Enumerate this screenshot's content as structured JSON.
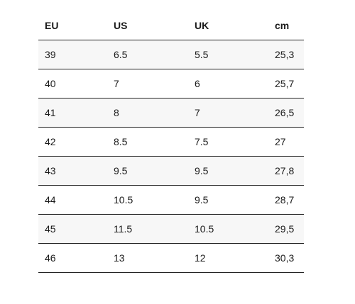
{
  "size_chart": {
    "headers": [
      "EU",
      "US",
      "UK",
      "cm"
    ],
    "rows": [
      [
        "39",
        "6.5",
        "5.5",
        "25,3"
      ],
      [
        "40",
        "7",
        "6",
        "25,7"
      ],
      [
        "41",
        "8",
        "7",
        "26,5"
      ],
      [
        "42",
        "8.5",
        "7.5",
        "27"
      ],
      [
        "43",
        "9.5",
        "9.5",
        "27,8"
      ],
      [
        "44",
        "10.5",
        "9.5",
        "28,7"
      ],
      [
        "45",
        "11.5",
        "10.5",
        "29,5"
      ],
      [
        "46",
        "13",
        "12",
        "30,3"
      ]
    ]
  },
  "colors": {
    "text": "#1a1a1a",
    "rule": "#222222",
    "row_shade": "#f7f7f7",
    "background": "#ffffff"
  }
}
